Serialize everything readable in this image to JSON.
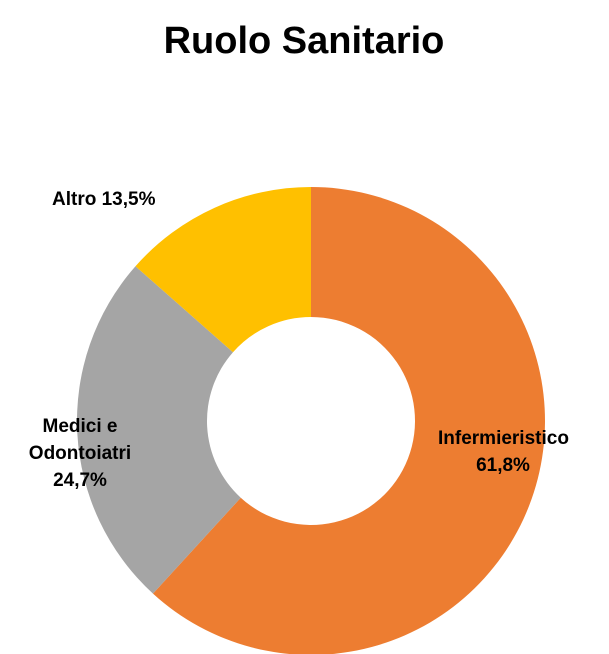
{
  "chart_data": {
    "type": "donut",
    "title": "Ruolo Sanitario",
    "categories": [
      "Infermieristico",
      "Medici e Odontoiatri",
      "Altro"
    ],
    "values": [
      61.8,
      24.7,
      13.5
    ],
    "value_labels": [
      "61,8%",
      "24,7%",
      "13,5%"
    ],
    "colors": [
      "#ed7d31",
      "#a5a5a5",
      "#ffc000"
    ]
  }
}
